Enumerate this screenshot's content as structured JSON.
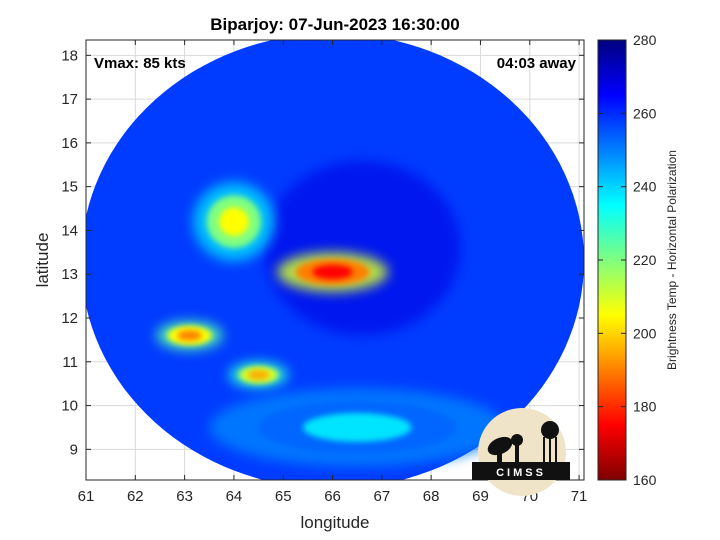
{
  "chart_data": {
    "type": "heatmap",
    "title": "Biparjoy: 07-Jun-2023 16:30:00",
    "xlabel": "longitude",
    "ylabel": "latitude",
    "xlim": [
      61,
      71.1
    ],
    "ylim": [
      8.3,
      18.35
    ],
    "x_ticks": [
      "61",
      "62",
      "63",
      "64",
      "65",
      "66",
      "67",
      "68",
      "69",
      "70",
      "71"
    ],
    "y_ticks": [
      "9",
      "10",
      "11",
      "12",
      "13",
      "14",
      "15",
      "16",
      "17",
      "18"
    ],
    "grid": true,
    "annotations": {
      "vmax": "Vmax: 85 kts",
      "time_away": "04:03 away"
    },
    "colorbar": {
      "label": "Brightness Temp - Horizontal Polarization",
      "range": [
        160,
        280
      ],
      "ticks": [
        "160",
        "180",
        "200",
        "220",
        "240",
        "260",
        "280"
      ],
      "colormap": "jet"
    },
    "swath": {
      "center_lon": 66.0,
      "center_lat": 13.3,
      "lon_radius": 5.1,
      "lat_radius": 5.2,
      "background_value": 258
    },
    "features": [
      {
        "name": "eyewall",
        "lon": 66.0,
        "lat": 13.05,
        "rx": 0.75,
        "ry": 0.3,
        "value": 175
      },
      {
        "name": "northwest-rainband",
        "lon": 64.0,
        "lat": 14.2,
        "rx": 0.55,
        "ry": 0.6,
        "value": 205
      },
      {
        "name": "west-rainband",
        "lon": 63.1,
        "lat": 11.6,
        "rx": 0.45,
        "ry": 0.22,
        "value": 190
      },
      {
        "name": "southwest-rainband",
        "lon": 64.5,
        "lat": 10.7,
        "rx": 0.4,
        "ry": 0.2,
        "value": 195
      },
      {
        "name": "southern-band",
        "lon": 66.5,
        "lat": 9.5,
        "rx": 2.0,
        "ry": 0.6,
        "value": 238
      }
    ]
  },
  "logo": {
    "text": "CIMSS"
  }
}
